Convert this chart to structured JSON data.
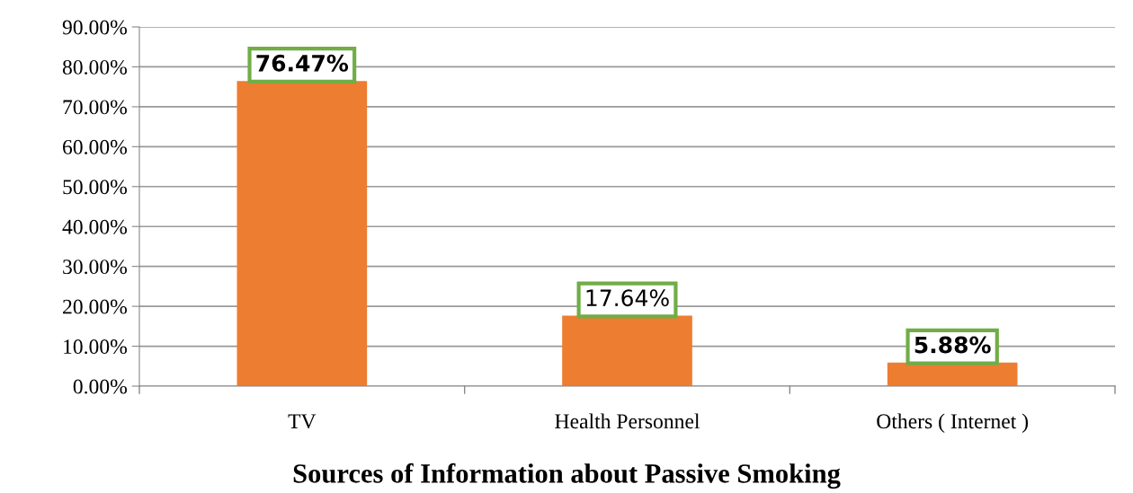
{
  "chart_data": {
    "type": "bar",
    "title": "Sources of Information about Passive Smoking",
    "categories": [
      "TV",
      "Health Personnel",
      "Others ( Internet )"
    ],
    "values": [
      76.47,
      17.64,
      5.88
    ],
    "color": "#ed7d31",
    "value_labels": [
      "76.47%",
      "17.64%",
      "5.88%"
    ],
    "ylim": [
      0,
      90
    ],
    "yticks": [
      {
        "value": 0,
        "label": "0.00%"
      },
      {
        "value": 10,
        "label": "10.00%"
      },
      {
        "value": 20,
        "label": "20.00%"
      },
      {
        "value": 30,
        "label": "30.00%"
      },
      {
        "value": 40,
        "label": "40.00%"
      },
      {
        "value": 50,
        "label": "50.00%"
      },
      {
        "value": 60,
        "label": "60.00%"
      },
      {
        "value": 70,
        "label": "70.00%"
      },
      {
        "value": 80,
        "label": "80.00%"
      },
      {
        "value": 90,
        "label": "90.00%"
      }
    ],
    "grid": "y",
    "legend": false
  }
}
